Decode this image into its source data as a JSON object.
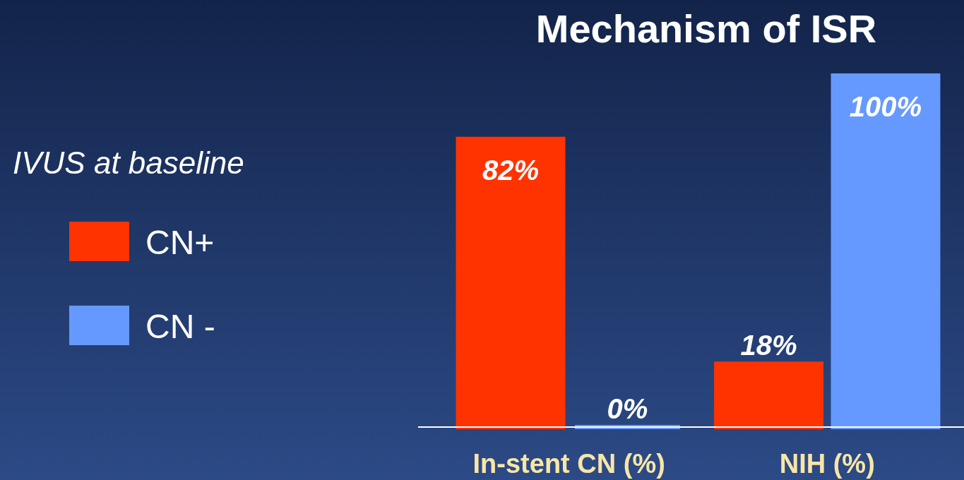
{
  "chart_data": {
    "type": "bar",
    "title": "Mechanism of ISR",
    "legend_title": "IVUS at baseline",
    "categories": [
      "In-stent CN (%)",
      "NIH (%)"
    ],
    "series": [
      {
        "name": "CN+",
        "color": "#ff3300",
        "values": [
          82,
          18
        ],
        "value_labels": [
          "82%",
          "18%"
        ]
      },
      {
        "name": "CN -",
        "color": "#6699ff",
        "values": [
          0,
          100
        ],
        "value_labels": [
          "0%",
          "100%"
        ]
      }
    ],
    "legend": "left"
  }
}
